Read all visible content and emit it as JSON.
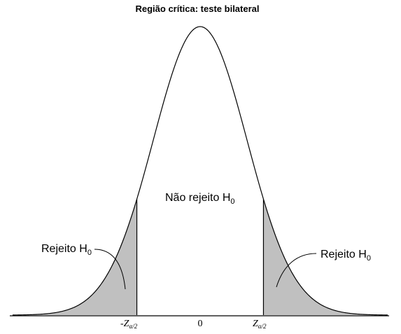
{
  "title": "Região crítica: teste bilateral",
  "regions": {
    "center": {
      "label": "Não rejeito H",
      "subscript": "0"
    },
    "left": {
      "label": "Rejeito H",
      "subscript": "0"
    },
    "right": {
      "label": "Rejeito H",
      "subscript": "0"
    }
  },
  "ticks": {
    "left": {
      "prefix": "-",
      "symbol": "Z",
      "subscript": "α/2"
    },
    "center": {
      "label": "0"
    },
    "right": {
      "prefix": "",
      "symbol": "Z",
      "subscript": "α/2"
    }
  },
  "chart_data": {
    "type": "area",
    "distribution": "standard-normal",
    "xlim": [
      -4,
      4
    ],
    "critical_value": 1.35,
    "shaded": "both-tails",
    "colors": {
      "curve": "#000000",
      "shade": "#c0c0c0",
      "axis": "#000000"
    }
  }
}
